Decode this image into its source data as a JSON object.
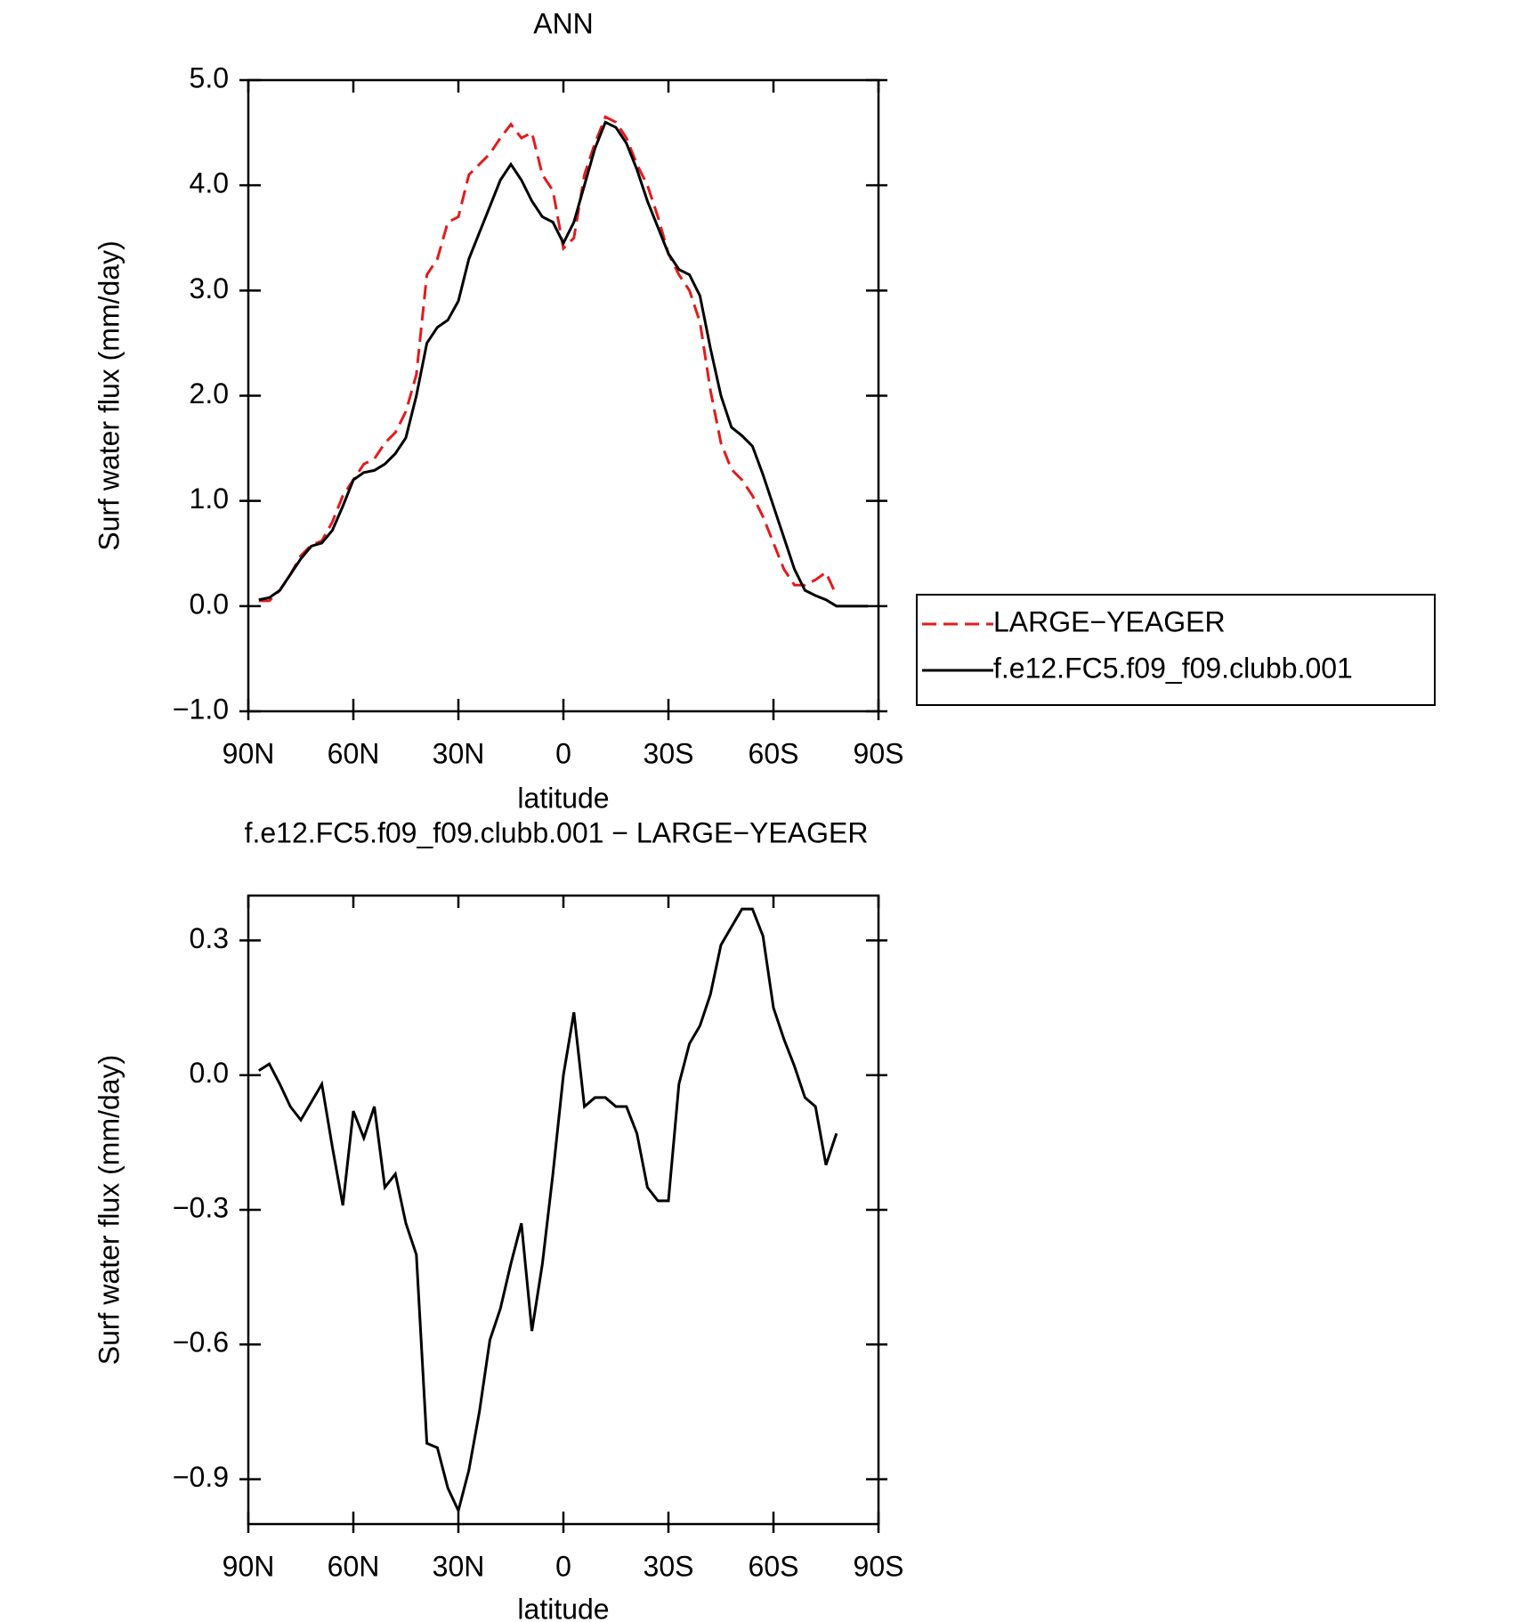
{
  "chart_data": [
    {
      "type": "line",
      "title": "ANN",
      "xlabel": "latitude",
      "ylabel": "Surf water flux (mm/day)",
      "x": [
        87,
        84,
        81,
        78,
        75,
        72,
        69,
        66,
        63,
        60,
        57,
        54,
        51,
        48,
        45,
        42,
        39,
        36,
        33,
        30,
        27,
        24,
        21,
        18,
        15,
        12,
        9,
        6,
        3,
        0,
        -3,
        -6,
        -9,
        -12,
        -15,
        -18,
        -21,
        -24,
        -27,
        -30,
        -33,
        -36,
        -39,
        -42,
        -45,
        -48,
        -51,
        -54,
        -57,
        -60,
        -63,
        -66,
        -69,
        -72,
        -75,
        -78,
        -81,
        -84,
        -87
      ],
      "series": [
        {
          "name": "LARGE−YEAGER",
          "color": "#e41a1c",
          "line_style": "dashed",
          "values": [
            0.05,
            0.05,
            0.15,
            0.3,
            0.48,
            0.58,
            0.62,
            0.8,
            1.05,
            1.2,
            1.35,
            1.4,
            1.55,
            1.65,
            1.85,
            2.2,
            3.15,
            3.3,
            3.65,
            3.7,
            4.1,
            4.2,
            4.3,
            4.45,
            4.58,
            4.45,
            4.5,
            4.1,
            3.95,
            3.4,
            3.5,
            4.1,
            4.4,
            4.65,
            4.6,
            4.45,
            4.2,
            4.0,
            3.7,
            3.35,
            3.15,
            3.0,
            2.7,
            2.05,
            1.55,
            1.3,
            1.2,
            1.05,
            0.85,
            0.6,
            0.35,
            0.2,
            0.2,
            0.25,
            0.32,
            0.1,
            null,
            null,
            null
          ]
        },
        {
          "name": "f.e12.FC5.f09_f09.clubb.001",
          "color": "#000000",
          "line_style": "solid",
          "values": [
            0.06,
            0.08,
            0.15,
            0.3,
            0.45,
            0.57,
            0.6,
            0.72,
            0.95,
            1.2,
            1.27,
            1.29,
            1.35,
            1.45,
            1.6,
            2.0,
            2.5,
            2.65,
            2.72,
            2.9,
            3.3,
            3.55,
            3.8,
            4.05,
            4.2,
            4.05,
            3.85,
            3.7,
            3.65,
            3.45,
            3.65,
            4.0,
            4.35,
            4.6,
            4.55,
            4.4,
            4.15,
            3.85,
            3.6,
            3.35,
            3.2,
            3.15,
            2.95,
            2.45,
            2.0,
            1.7,
            1.62,
            1.52,
            1.25,
            0.95,
            0.65,
            0.35,
            0.15,
            0.1,
            0.06,
            0.0,
            0.0,
            0.0,
            0.0
          ]
        }
      ],
      "xlim": [
        90,
        -90
      ],
      "xticks": [
        {
          "value": 90,
          "label": "90N"
        },
        {
          "value": 60,
          "label": "60N"
        },
        {
          "value": 30,
          "label": "30N"
        },
        0,
        {
          "value": -30,
          "label": "30S"
        },
        {
          "value": -60,
          "label": "60S"
        },
        {
          "value": -90,
          "label": "90S"
        }
      ],
      "ylim": [
        -1.0,
        5.0
      ],
      "yticks": [
        {
          "value": -1,
          "label": "−1.0"
        },
        {
          "value": 0,
          "label": "0.0"
        },
        {
          "value": 1,
          "label": "1.0"
        },
        {
          "value": 2,
          "label": "2.0"
        },
        {
          "value": 3,
          "label": "3.0"
        },
        {
          "value": 4,
          "label": "4.0"
        },
        {
          "value": 5,
          "label": "5.0"
        }
      ],
      "legend": "right"
    },
    {
      "type": "line",
      "title": "f.e12.FC5.f09_f09.clubb.001 − LARGE−YEAGER",
      "xlabel": "latitude",
      "ylabel": "Surf water flux (mm/day)",
      "x": [
        87,
        84,
        81,
        78,
        75,
        72,
        69,
        66,
        63,
        60,
        57,
        54,
        51,
        48,
        45,
        42,
        39,
        36,
        33,
        30,
        27,
        24,
        21,
        18,
        15,
        12,
        9,
        6,
        3,
        0,
        -3,
        -6,
        -9,
        -12,
        -15,
        -18,
        -21,
        -24,
        -27,
        -30,
        -33,
        -36,
        -39,
        -42,
        -45,
        -48,
        -51,
        -54,
        -57,
        -60,
        -63,
        -66,
        -69,
        -72,
        -75,
        -78,
        -81,
        -84,
        -87
      ],
      "series": [
        {
          "color": "#000000",
          "line_style": "solid",
          "values": [
            0.01,
            0.025,
            -0.02,
            -0.07,
            -0.1,
            -0.06,
            -0.02,
            -0.16,
            -0.29,
            -0.08,
            -0.14,
            -0.07,
            -0.25,
            -0.22,
            -0.33,
            -0.4,
            -0.82,
            -0.83,
            -0.92,
            -0.97,
            -0.88,
            -0.75,
            -0.59,
            -0.52,
            -0.42,
            -0.33,
            -0.57,
            -0.42,
            -0.22,
            0.0,
            0.14,
            -0.07,
            -0.05,
            -0.05,
            -0.07,
            -0.07,
            -0.13,
            -0.25,
            -0.28,
            -0.28,
            -0.02,
            0.07,
            0.11,
            0.18,
            0.29,
            0.33,
            0.37,
            0.37,
            0.31,
            0.15,
            0.08,
            0.02,
            -0.05,
            -0.07,
            -0.2,
            -0.13,
            null,
            null,
            null
          ]
        }
      ],
      "xlim": [
        90,
        -90
      ],
      "xticks": [
        {
          "value": 90,
          "label": "90N"
        },
        {
          "value": 60,
          "label": "60N"
        },
        {
          "value": 30,
          "label": "30N"
        },
        0,
        {
          "value": -30,
          "label": "30S"
        },
        {
          "value": -60,
          "label": "60S"
        },
        {
          "value": -90,
          "label": "90S"
        }
      ],
      "ylim": [
        -1.0,
        0.4
      ],
      "yticks": [
        {
          "value": -0.9,
          "label": "−0.9"
        },
        {
          "value": -0.6,
          "label": "−0.6"
        },
        {
          "value": -0.3,
          "label": "−0.3"
        },
        {
          "value": 0,
          "label": "0.0"
        },
        0.3
      ]
    }
  ]
}
